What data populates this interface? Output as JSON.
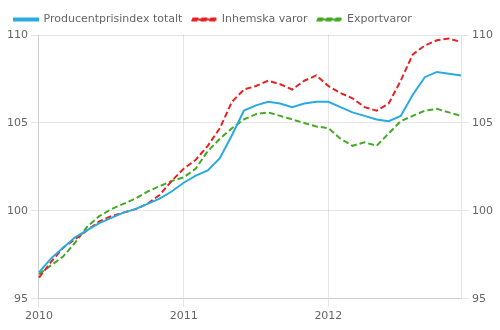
{
  "chart_data": {
    "type": "line",
    "categories": [
      "2010",
      null,
      null,
      null,
      null,
      null,
      null,
      null,
      null,
      null,
      null,
      null,
      "2011",
      null,
      null,
      null,
      null,
      null,
      null,
      null,
      null,
      null,
      null,
      null,
      "2012",
      null,
      null,
      null,
      null,
      null,
      null,
      null,
      null,
      null,
      null,
      null
    ],
    "series": [
      {
        "name": "Producentprisindex totalt",
        "color": "#29abe2",
        "line_style": "solid",
        "values": [
          96.5,
          97.3,
          97.9,
          98.5,
          98.9,
          99.3,
          99.6,
          99.9,
          100.1,
          100.4,
          100.7,
          101.1,
          101.6,
          102.0,
          102.3,
          103.0,
          104.3,
          105.7,
          106.0,
          106.2,
          106.1,
          105.9,
          106.1,
          106.2,
          106.2,
          105.9,
          105.6,
          105.4,
          105.2,
          105.1,
          105.4,
          106.6,
          107.6,
          107.9,
          107.8,
          107.7
        ]
      },
      {
        "name": "Inhemska varor",
        "color": "#e82222",
        "line_style": "dashed",
        "values": [
          96.2,
          97.1,
          97.9,
          98.4,
          98.9,
          99.4,
          99.7,
          99.9,
          100.1,
          100.4,
          100.9,
          101.7,
          102.4,
          102.9,
          103.7,
          104.7,
          106.2,
          106.9,
          107.1,
          107.4,
          107.2,
          106.9,
          107.4,
          107.7,
          107.1,
          106.7,
          106.4,
          105.9,
          105.7,
          106.1,
          107.4,
          108.9,
          109.4,
          109.7,
          109.8,
          109.6
        ]
      },
      {
        "name": "Exportvaror",
        "color": "#44aa22",
        "line_style": "dashed",
        "values": [
          96.4,
          96.9,
          97.4,
          98.2,
          99.1,
          99.7,
          100.1,
          100.4,
          100.7,
          101.1,
          101.4,
          101.7,
          101.9,
          102.4,
          103.4,
          104.1,
          104.7,
          105.2,
          105.5,
          105.6,
          105.4,
          105.2,
          105.0,
          104.8,
          104.7,
          104.1,
          103.7,
          103.9,
          103.7,
          104.4,
          105.1,
          105.4,
          105.7,
          105.8,
          105.6,
          105.4
        ]
      }
    ],
    "ylim": [
      95,
      110
    ],
    "yticks": [
      95,
      100,
      105,
      110
    ],
    "y2lim": [
      95,
      110
    ],
    "y2ticks": [
      95,
      100,
      105,
      110
    ],
    "grid": true,
    "legend": "upper left"
  }
}
